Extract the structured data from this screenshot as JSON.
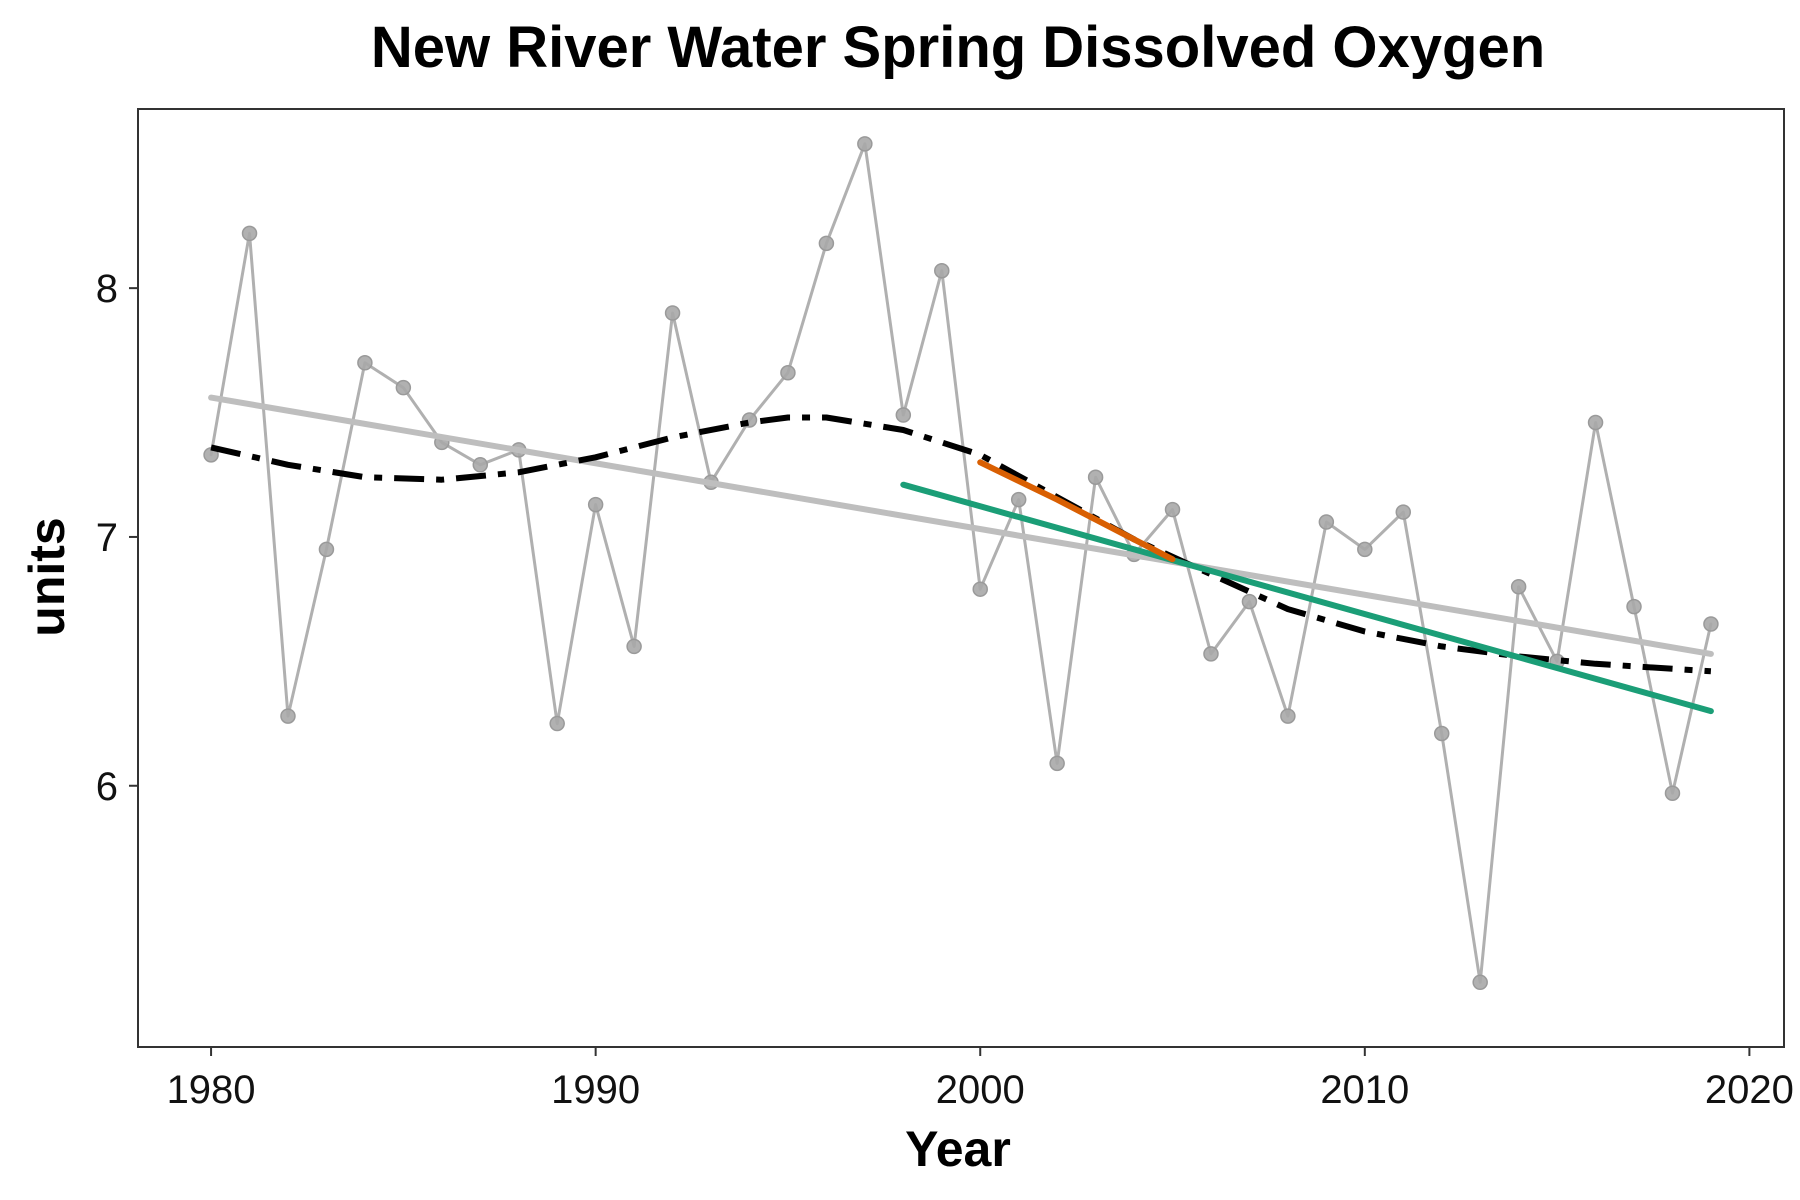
{
  "chart_data": {
    "type": "line",
    "title": "New River Water Spring Dissolved Oxygen",
    "xlabel": "Year",
    "ylabel": "units",
    "xlim": [
      1978.1,
      2020.9
    ],
    "ylim": [
      4.95,
      8.72
    ],
    "grid": false,
    "x_ticks": [
      1980,
      1990,
      2000,
      2010,
      2020
    ],
    "y_ticks": [
      6,
      7,
      8
    ],
    "x_tick_labels": [
      "1980",
      "1990",
      "2000",
      "2010",
      "2020"
    ],
    "y_tick_labels": [
      "6",
      "7",
      "8"
    ],
    "series": [
      {
        "kind": "observed",
        "color": "#b0b0b0",
        "x": [
          1980,
          1981,
          1982,
          1983,
          1984,
          1985,
          1986,
          1987,
          1988,
          1989,
          1990,
          1991,
          1992,
          1993,
          1994,
          1995,
          1996,
          1997,
          1998,
          1999,
          2000,
          2001,
          2002,
          2003,
          2004,
          2005,
          2006,
          2007,
          2008,
          2009,
          2010,
          2011,
          2012,
          2013,
          2014,
          2015,
          2016,
          2017,
          2018,
          2019
        ],
        "y": [
          7.33,
          8.22,
          6.28,
          6.95,
          7.7,
          7.6,
          7.38,
          7.29,
          7.35,
          6.25,
          7.13,
          6.56,
          7.9,
          7.22,
          7.47,
          7.66,
          8.18,
          8.58,
          7.49,
          8.07,
          6.79,
          7.15,
          6.09,
          7.24,
          6.93,
          7.11,
          6.53,
          6.74,
          6.28,
          7.06,
          6.95,
          7.1,
          6.21,
          5.21,
          6.8,
          6.5,
          7.46,
          6.72,
          5.97,
          6.65
        ]
      },
      {
        "kind": "long-term-trend",
        "color": "#bebebe",
        "x": [
          1980,
          2019
        ],
        "y": [
          7.56,
          6.53
        ]
      },
      {
        "kind": "smooth-fit",
        "color": "#000000",
        "dash": "dot-dash",
        "x": [
          1980,
          1982,
          1984,
          1986,
          1988,
          1990,
          1992,
          1994,
          1995,
          1996,
          1998,
          2000,
          2002,
          2004,
          2006,
          2008,
          2010,
          2012,
          2014,
          2016,
          2018,
          2019
        ],
        "y": [
          7.36,
          7.29,
          7.24,
          7.23,
          7.26,
          7.32,
          7.4,
          7.46,
          7.48,
          7.48,
          7.43,
          7.33,
          7.16,
          6.99,
          6.85,
          6.71,
          6.62,
          6.56,
          6.52,
          6.49,
          6.47,
          6.46
        ]
      },
      {
        "kind": "segment-trend",
        "color": "#d95f02",
        "x": [
          2000,
          2002,
          2004,
          2005
        ],
        "y": [
          7.3,
          7.15,
          6.99,
          6.91
        ]
      },
      {
        "kind": "recent-trend",
        "color": "#1b9e77",
        "x": [
          1998,
          2019
        ],
        "y": [
          7.21,
          6.3
        ]
      }
    ]
  }
}
